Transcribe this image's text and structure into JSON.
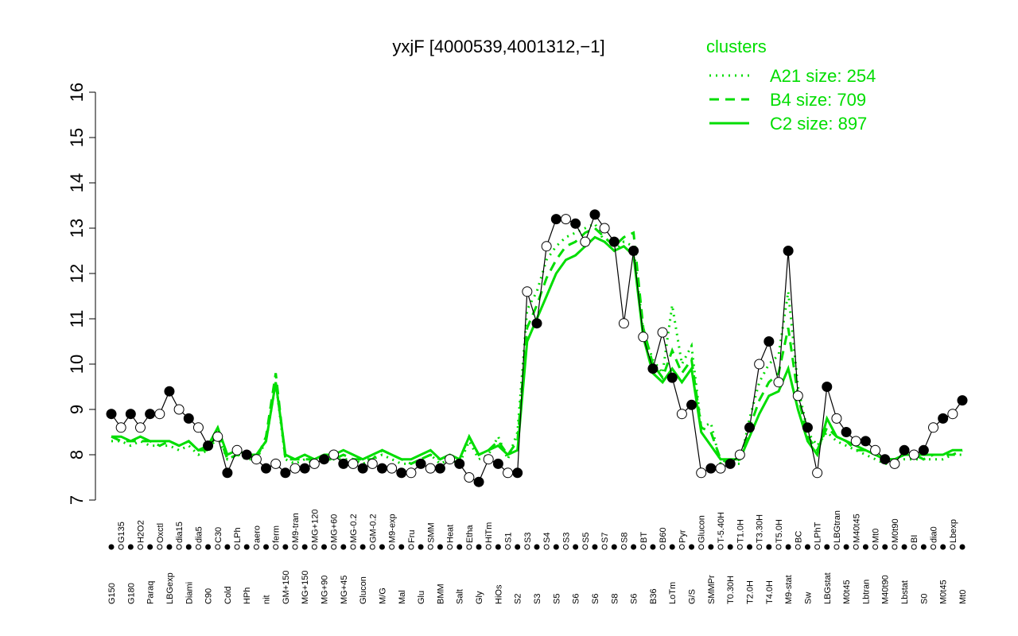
{
  "chart_data": {
    "type": "line",
    "title": "yxjF [4000539,4001312,−1]",
    "legend_title": "clusters",
    "legend_position": "top-right",
    "categories": [
      "G150",
      "G135",
      "G180",
      "H2O2",
      "Paraq",
      "Oxctl",
      "LBGexp",
      "dia15",
      "Diami",
      "dia5",
      "C90",
      "C30",
      "Cold",
      "LPh",
      "HPh",
      "aero",
      "nit",
      "ferm",
      "GM+150",
      "M9-tran",
      "MG+150",
      "MG+120",
      "MG+90",
      "MG+60",
      "MG+45",
      "MG-0.2",
      "Glucon",
      "GM-0.2",
      "M/G",
      "M9-exp",
      "Mal",
      "Fru",
      "Glu",
      "SMM",
      "BMM",
      "Heat",
      "Salt",
      "Etha",
      "Gly",
      "HiTm",
      "HiOs",
      "S1",
      "S2",
      "S3",
      "S3",
      "S4",
      "S5",
      "S3",
      "S6",
      "S5",
      "S6",
      "S7",
      "S8",
      "S8",
      "S6",
      "BT",
      "B36",
      "B60",
      "LoTm",
      "Pyr",
      "G/S",
      "Glucon",
      "SMMPr",
      "T-5.40H",
      "T0.30H",
      "T1.0H",
      "T2.0H",
      "T3.30H",
      "T4.0H",
      "T5.0H",
      "M9-stat",
      "BC",
      "Sw",
      "LPhT",
      "LBGstat",
      "LBGtran",
      "M0t45",
      "M40t45",
      "Lbtran",
      "Mt0",
      "M40t90",
      "M0t90",
      "Lbstat",
      "BI",
      "S0",
      "dia0",
      "M0t45",
      "Lbexp",
      "Mt0"
    ],
    "values": [
      8.9,
      8.6,
      8.9,
      8.6,
      8.9,
      8.9,
      9.4,
      9.0,
      8.8,
      8.6,
      8.2,
      8.4,
      7.6,
      8.1,
      8.0,
      7.9,
      7.7,
      7.8,
      7.6,
      7.7,
      7.7,
      7.8,
      7.9,
      8.0,
      7.8,
      7.8,
      7.7,
      7.8,
      7.7,
      7.7,
      7.6,
      7.6,
      7.8,
      7.7,
      7.7,
      7.9,
      7.8,
      7.5,
      7.4,
      7.9,
      7.8,
      7.6,
      7.6,
      11.6,
      10.9,
      12.6,
      13.2,
      13.2,
      13.1,
      12.7,
      13.3,
      13.0,
      12.7,
      10.9,
      12.5,
      10.6,
      9.9,
      10.7,
      9.7,
      8.9,
      9.1,
      7.6,
      7.7,
      7.7,
      7.8,
      8.0,
      8.6,
      10.0,
      10.5,
      9.6,
      12.5,
      9.3,
      8.6,
      7.6,
      9.5,
      8.8,
      8.5,
      8.3,
      8.3,
      8.1,
      7.9,
      7.8,
      8.1,
      8.0,
      8.1,
      8.6,
      8.8,
      8.9,
      9.2
    ],
    "color": "#000000",
    "series": [
      {
        "name": "A21 size: 254",
        "color": "#00dd00",
        "dash": "dotted",
        "values": [
          8.3,
          8.3,
          8.2,
          8.3,
          8.2,
          8.2,
          8.2,
          8.1,
          8.2,
          8.0,
          8.1,
          8.4,
          7.9,
          8.0,
          7.9,
          7.9,
          8.3,
          9.6,
          7.9,
          7.8,
          7.9,
          7.8,
          7.9,
          7.9,
          7.9,
          7.9,
          7.8,
          7.9,
          8.0,
          7.9,
          7.8,
          7.8,
          7.9,
          8.0,
          7.8,
          7.9,
          7.8,
          8.3,
          7.9,
          8.0,
          8.4,
          7.9,
          8.5,
          11.2,
          11.6,
          12.3,
          12.6,
          12.8,
          12.9,
          13.0,
          13.1,
          12.7,
          12.5,
          12.7,
          12.6,
          10.7,
          10.1,
          9.8,
          11.3,
          10.0,
          10.4,
          8.6,
          8.7,
          7.8,
          7.8,
          7.8,
          8.8,
          9.6,
          10.0,
          10.2,
          11.6,
          9.5,
          8.5,
          8.2,
          8.5,
          8.3,
          8.2,
          8.1,
          8.0,
          7.9,
          7.8,
          7.8,
          7.9,
          7.9,
          7.9,
          7.9,
          7.9,
          8.0,
          8.0
        ]
      },
      {
        "name": "B4 size: 709",
        "color": "#00dd00",
        "dash": "dashed",
        "values": [
          8.4,
          8.3,
          8.3,
          8.3,
          8.3,
          8.2,
          8.3,
          8.2,
          8.3,
          8.1,
          8.1,
          8.5,
          7.9,
          8.0,
          8.0,
          7.9,
          8.4,
          9.8,
          7.9,
          7.9,
          7.9,
          7.9,
          7.9,
          7.9,
          8.0,
          7.9,
          7.9,
          7.9,
          8.1,
          8.0,
          7.9,
          7.8,
          7.9,
          8.0,
          7.9,
          8.0,
          7.9,
          8.4,
          8.0,
          8.1,
          8.3,
          8.0,
          8.3,
          10.8,
          11.3,
          11.9,
          12.3,
          12.6,
          12.7,
          12.9,
          13.0,
          12.8,
          12.6,
          12.8,
          12.9,
          10.8,
          10.0,
          9.7,
          10.3,
          9.8,
          10.1,
          8.6,
          8.5,
          7.9,
          7.8,
          7.9,
          8.6,
          9.2,
          9.6,
          9.8,
          10.8,
          9.3,
          8.4,
          8.1,
          8.6,
          8.4,
          8.3,
          8.1,
          8.1,
          8.0,
          7.9,
          7.9,
          8.0,
          8.0,
          7.9,
          8.0,
          8.0,
          8.0,
          8.1
        ]
      },
      {
        "name": "C2 size: 897",
        "color": "#00dd00",
        "dash": "solid",
        "values": [
          8.4,
          8.4,
          8.3,
          8.4,
          8.3,
          8.3,
          8.3,
          8.2,
          8.3,
          8.1,
          8.2,
          8.6,
          8.0,
          8.1,
          8.0,
          8.0,
          8.3,
          9.6,
          8.0,
          7.9,
          8.0,
          7.9,
          8.0,
          8.0,
          8.1,
          8.0,
          7.9,
          8.0,
          8.1,
          8.0,
          7.9,
          7.9,
          8.0,
          8.1,
          7.9,
          8.0,
          7.9,
          8.4,
          8.0,
          8.1,
          8.2,
          8.0,
          8.1,
          10.5,
          11.0,
          11.5,
          12.0,
          12.3,
          12.4,
          12.6,
          12.8,
          12.7,
          12.5,
          12.6,
          12.4,
          10.6,
          9.8,
          9.6,
          9.9,
          9.6,
          9.9,
          8.5,
          8.2,
          7.9,
          7.9,
          7.9,
          8.4,
          8.9,
          9.3,
          9.4,
          9.9,
          9.0,
          8.3,
          8.0,
          8.8,
          8.4,
          8.3,
          8.2,
          8.1,
          8.0,
          7.9,
          7.9,
          8.0,
          8.0,
          8.0,
          8.0,
          8.0,
          8.1,
          8.1
        ]
      }
    ],
    "ylim": [
      7,
      16
    ],
    "yticks": [
      7,
      8,
      9,
      10,
      11,
      12,
      13,
      14,
      15,
      16
    ]
  }
}
